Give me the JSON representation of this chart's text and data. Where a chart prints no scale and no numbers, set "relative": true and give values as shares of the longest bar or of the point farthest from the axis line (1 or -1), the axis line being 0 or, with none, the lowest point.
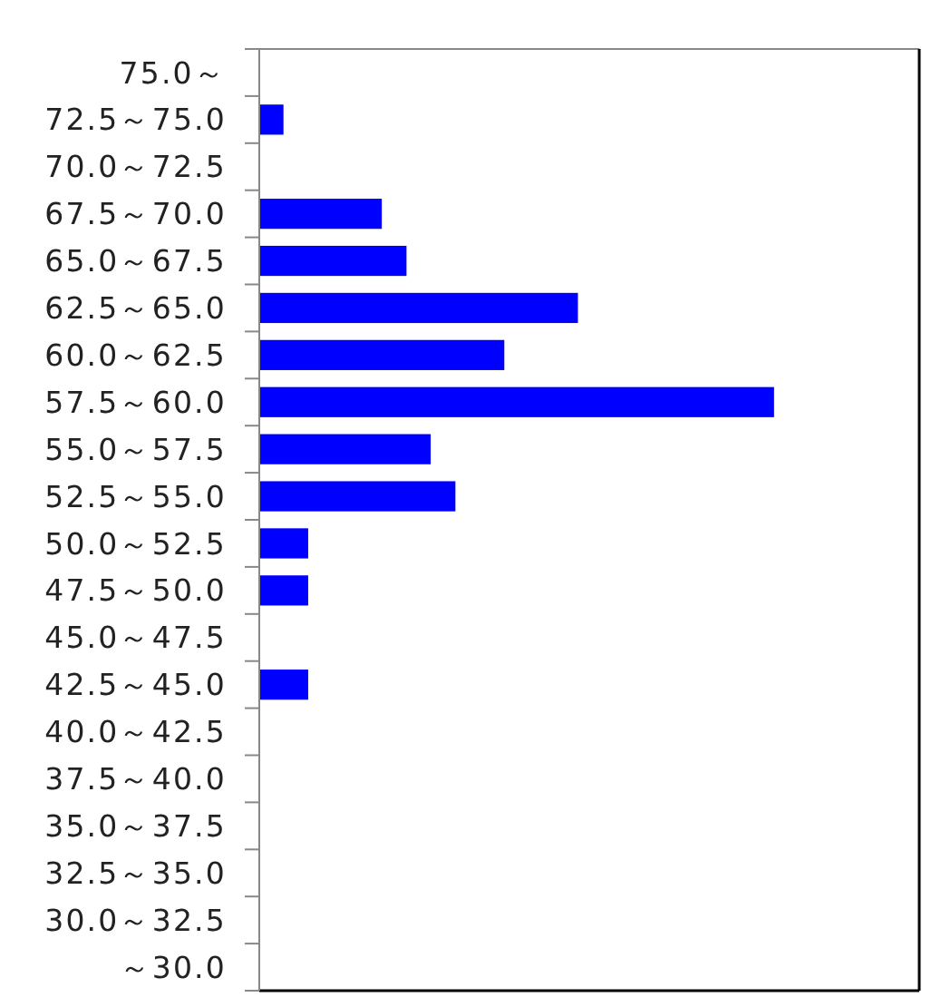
{
  "chart_data": {
    "type": "bar",
    "orientation": "horizontal",
    "relative": true,
    "categories": [
      "75.0～",
      "72.5～75.0",
      "70.0～72.5",
      "67.5～70.0",
      "65.0～67.5",
      "62.5～65.0",
      "60.0～62.5",
      "57.5～60.0",
      "55.0～57.5",
      "52.5～55.0",
      "50.0～52.5",
      "47.5～50.0",
      "45.0～47.5",
      "42.5～45.0",
      "40.0～42.5",
      "37.5～40.0",
      "35.0～37.5",
      "32.5～35.0",
      "30.0～32.5",
      "～30.0"
    ],
    "values": [
      0,
      0.047,
      0,
      0.238,
      0.286,
      0.619,
      0.476,
      1,
      0.333,
      0.381,
      0.095,
      0.095,
      0,
      0.095,
      0,
      0,
      0,
      0,
      0,
      0
    ],
    "color": "#0000ff",
    "grid": false
  }
}
